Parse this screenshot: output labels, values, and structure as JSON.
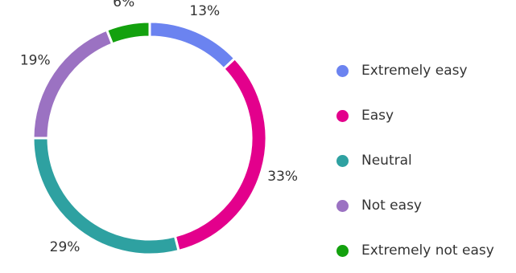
{
  "chart_data": {
    "type": "pie",
    "variant": "donut",
    "title": "",
    "legend_position": "right",
    "categories": [
      "Extremely easy",
      "Easy",
      "Neutral",
      "Not easy",
      "Extremely not easy"
    ],
    "values": [
      13,
      33,
      29,
      19,
      6
    ],
    "value_labels": [
      "13%",
      "33%",
      "29%",
      "19%",
      "6%"
    ],
    "colors": [
      "#6B83F0",
      "#E3008C",
      "#2EA1A1",
      "#9B72C2",
      "#13A10E"
    ],
    "start_angle_deg": 0,
    "direction": "clockwise"
  }
}
